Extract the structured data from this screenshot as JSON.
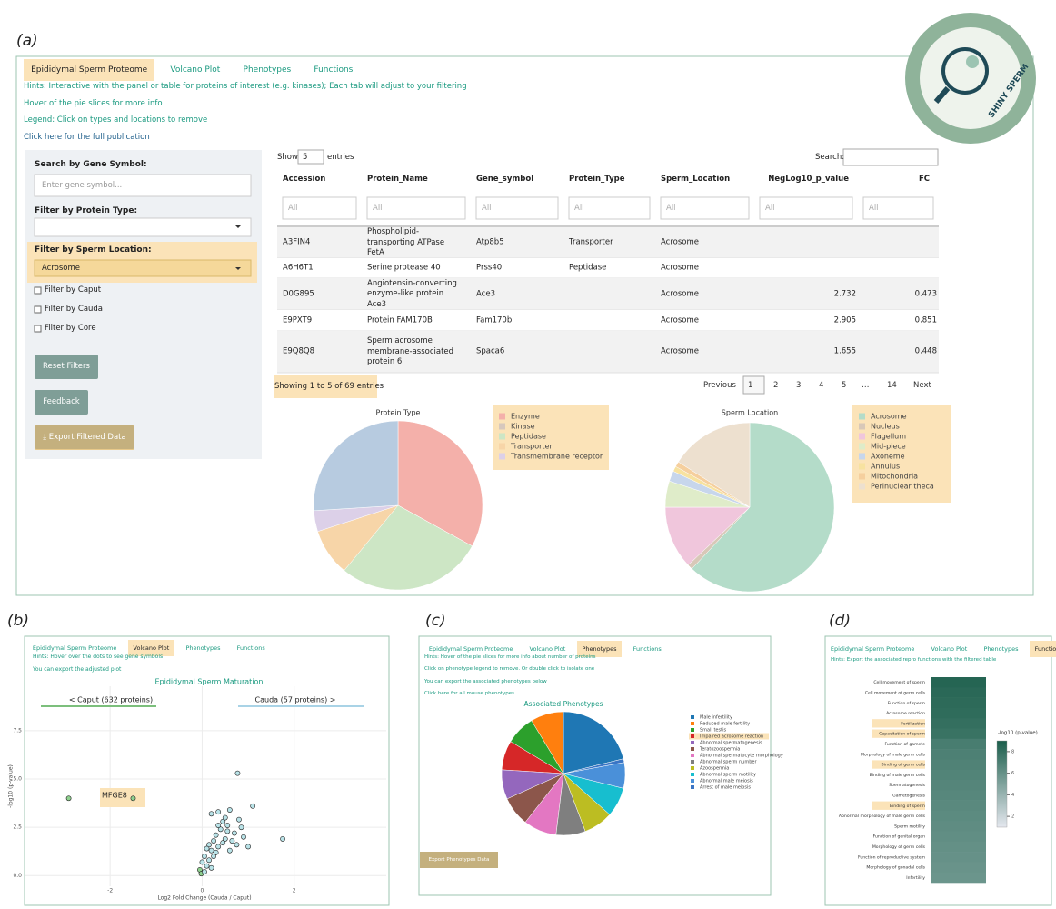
{
  "panel_labels": [
    "(a)",
    "(b)",
    "(c)",
    "(d)"
  ],
  "logo": "SHINY SPERM",
  "a": {
    "tabs": [
      "Epididymal Sperm Proteome",
      "Volcano Plot",
      "Phenotypes",
      "Functions"
    ],
    "hints": [
      "Hints: Interactive with the panel or table for proteins of interest (e.g. kinases); Each tab will adjust to your filtering",
      "Hover of the pie slices for more info",
      "Legend: Click on types and locations to remove",
      "Click here for the full publication"
    ],
    "sidebar": {
      "search_label": "Search by Gene Symbol:",
      "search_placeholder": "Enter gene symbol...",
      "type_label": "Filter by Protein Type:",
      "location_label": "Filter by Sperm Location:",
      "location_value": "Acrosome",
      "checkboxes": [
        "Filter by Caput",
        "Filter by Cauda",
        "Filter by Core"
      ],
      "buttons": [
        "Reset Filters",
        "Feedback",
        "Export Filtered Data"
      ]
    },
    "table": {
      "show": "Show",
      "length": 5,
      "entries": "entries",
      "search": "Search:",
      "columns": [
        "Accession",
        "Protein_Name",
        "Gene_symbol",
        "Protein_Type",
        "Sperm_Location",
        "NegLog10_p_value",
        "FC"
      ],
      "filter_placeholder": "All",
      "rows": [
        [
          "A3FIN4",
          "Phospholipid-transporting ATPase FetA",
          "Atp8b5",
          "Transporter",
          "Acrosome",
          null,
          null
        ],
        [
          "A6H6T1",
          "Serine protease 40",
          "Prss40",
          "Peptidase",
          "Acrosome",
          null,
          null
        ],
        [
          "D0G895",
          "Angiotensin-converting enzyme-like protein Ace3",
          "Ace3",
          null,
          "Acrosome",
          2.732,
          0.473
        ],
        [
          "E9PXT9",
          "Protein FAM170B",
          "Fam170b",
          null,
          "Acrosome",
          2.905,
          0.851
        ],
        [
          "E9Q8Q8",
          "Sperm acrosome membrane-associated protein 6",
          "Spaca6",
          null,
          "Acrosome",
          1.655,
          0.448
        ]
      ],
      "info": "Showing 1 to 5 of 69 entries",
      "pagination": [
        "Previous",
        "1",
        "2",
        "3",
        "4",
        "5",
        "…",
        "14",
        "Next"
      ]
    },
    "charts": [
      {
        "type": "pie",
        "title": "Protein Type",
        "direction": "clockwise",
        "categories": [
          "Enzyme",
          "Kinase",
          "Peptidase",
          "Transporter",
          "Transmembrane receptor",
          null
        ],
        "values": [
          33,
          0,
          28,
          9,
          4,
          26
        ],
        "colors": [
          "#f4b0aa",
          "#d7c8bd",
          "#cde6c5",
          "#f7d5a8",
          "#dcd0e8",
          "#b7cbe0"
        ]
      },
      {
        "type": "pie",
        "title": "Sperm Location",
        "direction": "clockwise",
        "categories": [
          "Acrosome",
          "Nucleus",
          "Flagellum",
          "Mid-piece",
          "Axoneme",
          "Annulus",
          "Mitochondria",
          "Perinuclear theca"
        ],
        "values": [
          62,
          1,
          12,
          5,
          2,
          1,
          1,
          16
        ],
        "colors": [
          "#b4dcc9",
          "#d8c8b8",
          "#f0c6dc",
          "#dfecc9",
          "#c7d6ec",
          "#f7e2a0",
          "#f5cf9e",
          "#ede0cf"
        ]
      }
    ]
  },
  "b": {
    "tabs": [
      "Epididymal Sperm Proteome",
      "Volcano Plot",
      "Phenotypes",
      "Functions"
    ],
    "hints": [
      "Hints: Hover over the dots to see gene symbols",
      "You can export the adjusted plot"
    ],
    "chart_data": {
      "type": "scatter",
      "title": "Epididymal Sperm Maturation",
      "left_group": "<   Caput (632 proteins)",
      "right_group": "Cauda (57 proteins)   >",
      "x_label": "Log2 Fold Change (Cauda / Caput)",
      "y_label": "-log10 (p-value)",
      "annotation": "MFGE8",
      "color": "#b9e3e8",
      "xlim": [
        -3.84,
        4.0
      ],
      "ylim": [
        -0.55,
        9.8
      ],
      "xticks": [
        -2,
        0,
        2
      ],
      "yticks": [
        {
          "value": 0,
          "label": "0.0"
        },
        2.5,
        {
          "value": 5,
          "label": "5.0"
        },
        7.5
      ],
      "x": [
        -2.9,
        -1.5,
        0.77,
        1.1,
        1.75,
        1.0,
        0.2,
        0.35,
        0.45,
        0.5,
        0.55,
        0.6,
        0.7,
        0.8,
        0.85,
        0.4,
        0.3,
        0.25,
        0.15,
        0.1,
        0.2,
        0.3,
        0.35,
        0.45,
        0.5,
        0.6,
        0.05,
        0.0,
        -0.05,
        0.1,
        0.15,
        0.2,
        0.25,
        -0.02,
        0.05,
        0.65,
        0.9,
        0.35,
        0.55,
        0.75
      ],
      "y": [
        4.0,
        4.0,
        5.3,
        3.6,
        1.9,
        1.5,
        3.2,
        3.3,
        2.8,
        3.0,
        2.6,
        3.4,
        2.2,
        2.9,
        2.5,
        2.4,
        2.1,
        1.8,
        1.6,
        1.4,
        1.3,
        1.2,
        1.5,
        1.7,
        1.9,
        1.3,
        1.0,
        0.7,
        0.3,
        0.5,
        0.8,
        0.4,
        1.0,
        0.1,
        0.2,
        1.8,
        2.0,
        2.6,
        2.3,
        1.6
      ]
    }
  },
  "c": {
    "tabs": [
      "Epididymal Sperm Proteome",
      "Volcano Plot",
      "Phenotypes",
      "Functions"
    ],
    "hints": [
      "Hints: Hover of the pie slices for more info about number of proteins",
      "Click on phenotype legend to remove. Or double click to isolate one",
      "You can export the associated phenotypes below",
      "Click here for all mouse phenotypes"
    ],
    "button": "Export Phenotypes Data",
    "chart_data": {
      "type": "pie",
      "title": "Associated Phenotypes",
      "direction": "counterclockwise",
      "highlight": 3,
      "categories": [
        "Male infertility",
        "Reduced male fertility",
        "Small testis",
        "Impaired acrosome reaction",
        "Abnormal spermatogenesis",
        "Teratozoospermia",
        "Abnormal spermatocyte morphology",
        "Abnormal sperm number",
        "Azoospermia",
        "Abnormal sperm motility",
        "Abnormal male meiosis",
        "Arrest of male meiosis"
      ],
      "values": [
        22,
        9,
        8,
        8,
        8,
        8,
        9,
        8,
        8,
        8,
        7,
        1
      ],
      "colors": [
        "#1f77b4",
        "#ff7f0e",
        "#2ca02c",
        "#d62728",
        "#9467bd",
        "#8c564b",
        "#e377c2",
        "#7f7f7f",
        "#bcbd22",
        "#17becf",
        "#4a90d9",
        "#3a75c4"
      ]
    }
  },
  "d": {
    "tabs": [
      "Epididymal Sperm Proteome",
      "Volcano Plot",
      "Phenotypes",
      "Functions"
    ],
    "hints": [
      "Hints: Export the associated repro functions with the filtered table"
    ],
    "chart_data": {
      "type": "heatmap",
      "colorbar_title": "-log10 (p-value)",
      "zlim": [
        1,
        9
      ],
      "zticks": [
        2,
        4,
        6,
        8
      ],
      "low_color": "#e4e7ee",
      "high_color": "#1b5e4b",
      "highlight": [
        4,
        5,
        8,
        12
      ],
      "categories": [
        "Cell movement of sperm",
        "Cell movement of germ cells",
        "Function of sperm",
        "Acrosome reaction",
        "Fertilization",
        "Capacitation of sperm",
        "Function of gamete",
        "Morphology of male germ cells",
        "Binding of germ cells",
        "Binding of male germ cells",
        "Spermatogenesis",
        "Gametogenesis",
        "Binding of sperm",
        "Abnormal morphology of male germ cells",
        "Sperm motility",
        "Function of genital organ",
        "Morphology of germ cells",
        "Function of reproductive system",
        "Morphology of gonadal cells",
        "Infertility"
      ],
      "values": [
        8.6,
        8.4,
        8.3,
        8.2,
        8.0,
        7.8,
        7.2,
        7.0,
        6.9,
        6.8,
        6.7,
        6.6,
        6.5,
        6.4,
        6.3,
        6.2,
        6.1,
        6.0,
        5.9,
        5.8
      ]
    }
  }
}
